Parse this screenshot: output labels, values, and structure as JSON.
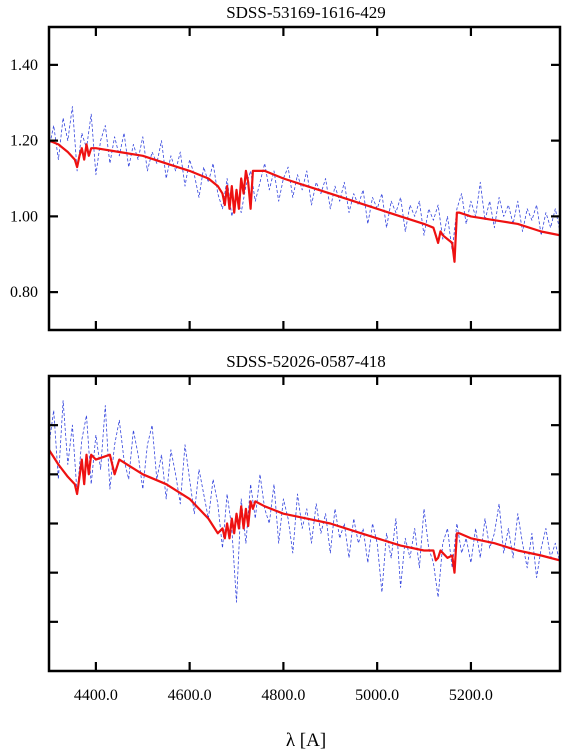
{
  "chart_data": [
    {
      "type": "line",
      "title": "SDSS-53169-1616-429",
      "xlabel": "",
      "ylabel": "",
      "xlim": [
        4300,
        5390
      ],
      "ylim": [
        0.7,
        1.5
      ],
      "xticks": [
        4400,
        4600,
        4800,
        5000,
        5200
      ],
      "yticks": [
        0.8,
        1.0,
        1.2,
        1.4
      ],
      "ytick_labels": [
        "0.80",
        "1.00",
        "1.20",
        "1.40"
      ],
      "grid": false,
      "series": [
        {
          "style": "dashed",
          "color": "#3344dd",
          "x": [
            4300,
            4310,
            4320,
            4330,
            4340,
            4350,
            4360,
            4370,
            4380,
            4390,
            4400,
            4410,
            4420,
            4430,
            4440,
            4450,
            4460,
            4470,
            4480,
            4490,
            4500,
            4510,
            4520,
            4530,
            4540,
            4550,
            4560,
            4570,
            4580,
            4590,
            4600,
            4610,
            4620,
            4630,
            4640,
            4650,
            4660,
            4670,
            4680,
            4690,
            4700,
            4710,
            4720,
            4730,
            4740,
            4750,
            4760,
            4770,
            4780,
            4790,
            4800,
            4810,
            4820,
            4830,
            4840,
            4850,
            4860,
            4870,
            4880,
            4890,
            4900,
            4910,
            4920,
            4930,
            4940,
            4950,
            4960,
            4970,
            4980,
            4990,
            5000,
            5010,
            5020,
            5030,
            5040,
            5050,
            5060,
            5070,
            5080,
            5090,
            5100,
            5110,
            5120,
            5130,
            5140,
            5150,
            5160,
            5170,
            5180,
            5190,
            5200,
            5210,
            5220,
            5230,
            5240,
            5250,
            5260,
            5270,
            5280,
            5290,
            5300,
            5310,
            5320,
            5330,
            5340,
            5350,
            5360,
            5370,
            5380,
            5390
          ],
          "y": [
            1.18,
            1.24,
            1.15,
            1.26,
            1.2,
            1.29,
            1.12,
            1.22,
            1.18,
            1.27,
            1.11,
            1.2,
            1.24,
            1.14,
            1.21,
            1.16,
            1.22,
            1.13,
            1.19,
            1.15,
            1.21,
            1.12,
            1.17,
            1.14,
            1.2,
            1.1,
            1.16,
            1.12,
            1.17,
            1.08,
            1.15,
            1.11,
            1.05,
            1.13,
            1.09,
            1.14,
            1.06,
            1.02,
            1.1,
            1.0,
            1.06,
            1.01,
            1.08,
            1.12,
            1.04,
            1.09,
            1.14,
            1.07,
            1.12,
            1.04,
            1.1,
            1.13,
            1.05,
            1.11,
            1.07,
            1.12,
            1.03,
            1.09,
            1.06,
            1.1,
            1.02,
            1.08,
            1.04,
            1.09,
            1.01,
            1.06,
            1.03,
            1.07,
            0.98,
            1.05,
            1.02,
            1.06,
            0.97,
            1.04,
            1.01,
            1.05,
            0.96,
            1.03,
            1.0,
            1.04,
            0.95,
            1.02,
            0.99,
            1.03,
            0.94,
            1.0,
            0.91,
            1.02,
            1.06,
            0.98,
            1.04,
            1.0,
            1.09,
            0.99,
            1.04,
            0.97,
            1.05,
            1.0,
            1.03,
            0.98,
            1.04,
            0.96,
            1.02,
            0.99,
            1.03,
            0.95,
            1.01,
            0.97,
            1.02,
            0.96
          ]
        },
        {
          "style": "solid",
          "color": "#ee1111",
          "x": [
            4300,
            4320,
            4340,
            4355,
            4360,
            4365,
            4370,
            4375,
            4380,
            4385,
            4390,
            4400,
            4450,
            4500,
            4550,
            4600,
            4640,
            4660,
            4670,
            4675,
            4680,
            4685,
            4690,
            4695,
            4700,
            4705,
            4710,
            4715,
            4720,
            4725,
            4730,
            4735,
            4740,
            4760,
            4800,
            4850,
            4900,
            4950,
            5000,
            5050,
            5100,
            5120,
            5125,
            5130,
            5135,
            5140,
            5150,
            5160,
            5165,
            5170,
            5175,
            5200,
            5250,
            5300,
            5350,
            5390
          ],
          "y": [
            1.2,
            1.19,
            1.17,
            1.15,
            1.13,
            1.16,
            1.18,
            1.15,
            1.19,
            1.16,
            1.18,
            1.18,
            1.17,
            1.16,
            1.14,
            1.12,
            1.1,
            1.08,
            1.06,
            1.03,
            1.08,
            1.02,
            1.08,
            1.01,
            1.07,
            1.02,
            1.1,
            1.06,
            1.12,
            1.09,
            1.02,
            1.12,
            1.12,
            1.12,
            1.1,
            1.08,
            1.06,
            1.04,
            1.02,
            1.0,
            0.98,
            0.97,
            0.95,
            0.93,
            0.96,
            0.95,
            0.94,
            0.93,
            0.88,
            1.01,
            1.01,
            1.0,
            0.99,
            0.98,
            0.96,
            0.95
          ]
        }
      ]
    },
    {
      "type": "line",
      "title": "SDSS-52026-0587-418",
      "xlabel": "λ [A]",
      "ylabel": "",
      "xlim": [
        4300,
        5390
      ],
      "ylim": [
        0,
        6
      ],
      "xticks": [
        4400,
        4600,
        4800,
        5000,
        5200
      ],
      "xtick_labels": [
        "4400.0",
        "4600.0",
        "4800.0",
        "5000.0",
        "5200.0"
      ],
      "yticks": [
        1,
        2,
        3,
        4,
        5
      ],
      "grid": false,
      "series": [
        {
          "style": "dashed",
          "color": "#3344dd",
          "x": [
            4300,
            4310,
            4320,
            4330,
            4340,
            4350,
            4360,
            4370,
            4380,
            4390,
            4400,
            4410,
            4420,
            4430,
            4440,
            4450,
            4460,
            4470,
            4480,
            4490,
            4500,
            4510,
            4520,
            4530,
            4540,
            4550,
            4560,
            4570,
            4580,
            4590,
            4600,
            4610,
            4620,
            4630,
            4640,
            4650,
            4660,
            4670,
            4680,
            4690,
            4700,
            4710,
            4720,
            4730,
            4740,
            4750,
            4760,
            4770,
            4780,
            4790,
            4800,
            4810,
            4820,
            4830,
            4840,
            4850,
            4860,
            4870,
            4880,
            4890,
            4900,
            4910,
            4920,
            4930,
            4940,
            4950,
            4960,
            4970,
            4980,
            4990,
            5000,
            5010,
            5020,
            5030,
            5040,
            5050,
            5060,
            5070,
            5080,
            5090,
            5100,
            5110,
            5120,
            5130,
            5140,
            5150,
            5160,
            5170,
            5180,
            5190,
            5200,
            5210,
            5220,
            5230,
            5240,
            5250,
            5260,
            5270,
            5280,
            5290,
            5300,
            5310,
            5320,
            5330,
            5340,
            5350,
            5360,
            5370,
            5380,
            5390
          ],
          "y": [
            4.6,
            5.3,
            3.9,
            5.5,
            4.2,
            5.0,
            3.6,
            4.7,
            5.2,
            3.8,
            4.8,
            4.1,
            5.4,
            3.7,
            4.6,
            5.1,
            4.3,
            3.9,
            4.9,
            4.4,
            3.7,
            4.6,
            5.0,
            3.9,
            4.4,
            3.5,
            4.5,
            4.0,
            3.4,
            4.6,
            3.9,
            3.2,
            4.1,
            3.6,
            3.1,
            3.9,
            3.4,
            2.5,
            3.6,
            2.9,
            1.4,
            3.5,
            2.6,
            3.8,
            3.1,
            4.0,
            3.3,
            3.0,
            3.8,
            2.6,
            3.5,
            3.1,
            2.4,
            3.6,
            2.9,
            3.3,
            2.6,
            3.4,
            2.8,
            3.2,
            2.4,
            3.3,
            2.7,
            3.0,
            2.3,
            3.1,
            2.6,
            2.9,
            2.2,
            3.0,
            2.6,
            1.6,
            2.8,
            2.3,
            3.1,
            1.7,
            2.7,
            2.3,
            2.9,
            2.1,
            3.3,
            2.5,
            2.2,
            1.5,
            2.6,
            2.9,
            2.1,
            3.0,
            2.4,
            2.7,
            2.2,
            2.9,
            2.3,
            3.1,
            2.5,
            2.8,
            3.4,
            2.4,
            2.9,
            2.3,
            3.2,
            2.6,
            2.1,
            2.8,
            1.9,
            2.5,
            2.9,
            2.3,
            2.6,
            2.2
          ]
        },
        {
          "style": "solid",
          "color": "#ee1111",
          "x": [
            4300,
            4320,
            4340,
            4355,
            4360,
            4365,
            4370,
            4375,
            4380,
            4385,
            4390,
            4400,
            4430,
            4440,
            4450,
            4500,
            4550,
            4600,
            4640,
            4660,
            4670,
            4675,
            4680,
            4685,
            4690,
            4695,
            4700,
            4705,
            4710,
            4715,
            4720,
            4725,
            4730,
            4735,
            4740,
            4760,
            4800,
            4850,
            4900,
            4950,
            5000,
            5050,
            5100,
            5120,
            5125,
            5130,
            5135,
            5140,
            5150,
            5160,
            5165,
            5170,
            5175,
            5200,
            5250,
            5300,
            5350,
            5390
          ],
          "y": [
            4.5,
            4.2,
            3.95,
            3.8,
            3.6,
            3.95,
            4.3,
            3.8,
            4.4,
            4.0,
            4.4,
            4.3,
            4.4,
            4.0,
            4.3,
            4.0,
            3.8,
            3.5,
            3.1,
            2.8,
            2.9,
            2.7,
            3.0,
            2.7,
            3.1,
            2.8,
            3.2,
            2.9,
            3.35,
            2.9,
            3.3,
            2.95,
            3.45,
            3.3,
            3.45,
            3.35,
            3.2,
            3.1,
            3.0,
            2.85,
            2.7,
            2.55,
            2.45,
            2.45,
            2.25,
            2.3,
            2.45,
            2.4,
            2.3,
            2.35,
            2.0,
            2.8,
            2.8,
            2.7,
            2.6,
            2.45,
            2.35,
            2.25
          ]
        }
      ]
    }
  ]
}
